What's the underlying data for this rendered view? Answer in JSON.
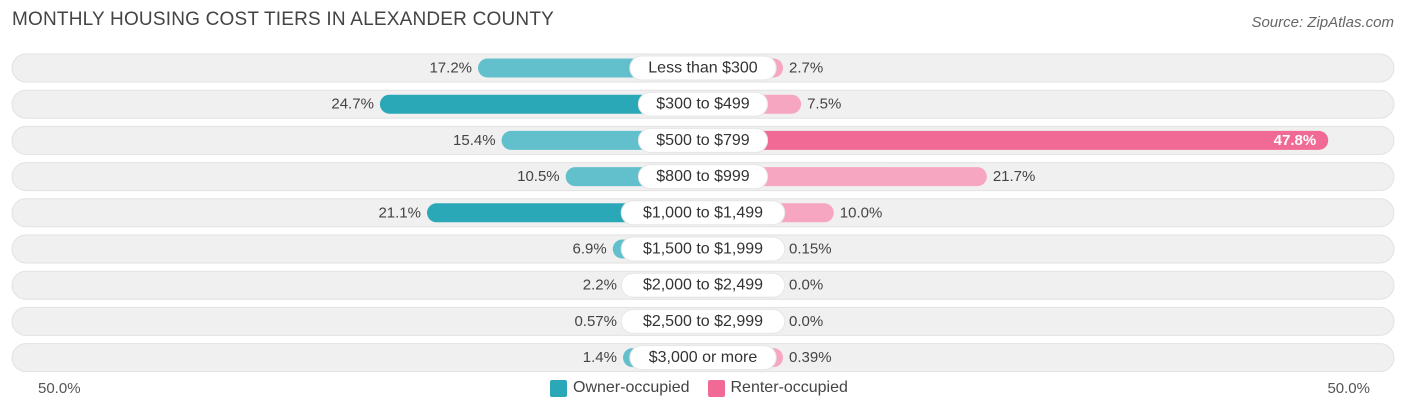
{
  "header": {
    "title": "MONTHLY HOUSING COST TIERS IN ALEXANDER COUNTY",
    "source": "Source: ZipAtlas.com"
  },
  "axis": {
    "left_label": "50.0%",
    "right_label": "50.0%"
  },
  "legend": {
    "owner_label": "Owner-occupied",
    "renter_label": "Renter-occupied"
  },
  "colors": {
    "owner": "#62c0cc",
    "owner_strong": "#2aa8b8",
    "renter": "#f7a6c2",
    "renter_strong": "#f06a95",
    "track": "#f0f0f0"
  },
  "chart_data": {
    "type": "bar",
    "orientation": "diverging-horizontal",
    "title": "MONTHLY HOUSING COST TIERS IN ALEXANDER COUNTY",
    "xlim": [
      -50,
      50
    ],
    "categories": [
      "Less than $300",
      "$300 to $499",
      "$500 to $799",
      "$800 to $999",
      "$1,000 to $1,499",
      "$1,500 to $1,999",
      "$2,000 to $2,499",
      "$2,500 to $2,999",
      "$3,000 or more"
    ],
    "series": [
      {
        "name": "Owner-occupied",
        "values": [
          17.2,
          24.7,
          15.4,
          10.5,
          21.1,
          6.9,
          2.2,
          0.57,
          1.4
        ],
        "labels": [
          "17.2%",
          "24.7%",
          "15.4%",
          "10.5%",
          "21.1%",
          "6.9%",
          "2.2%",
          "0.57%",
          "1.4%"
        ]
      },
      {
        "name": "Renter-occupied",
        "values": [
          2.7,
          7.5,
          47.8,
          21.7,
          10.0,
          0.15,
          0.0,
          0.0,
          0.39
        ],
        "labels": [
          "2.7%",
          "7.5%",
          "47.8%",
          "21.7%",
          "10.0%",
          "0.15%",
          "0.0%",
          "0.0%",
          "0.39%"
        ]
      }
    ]
  }
}
